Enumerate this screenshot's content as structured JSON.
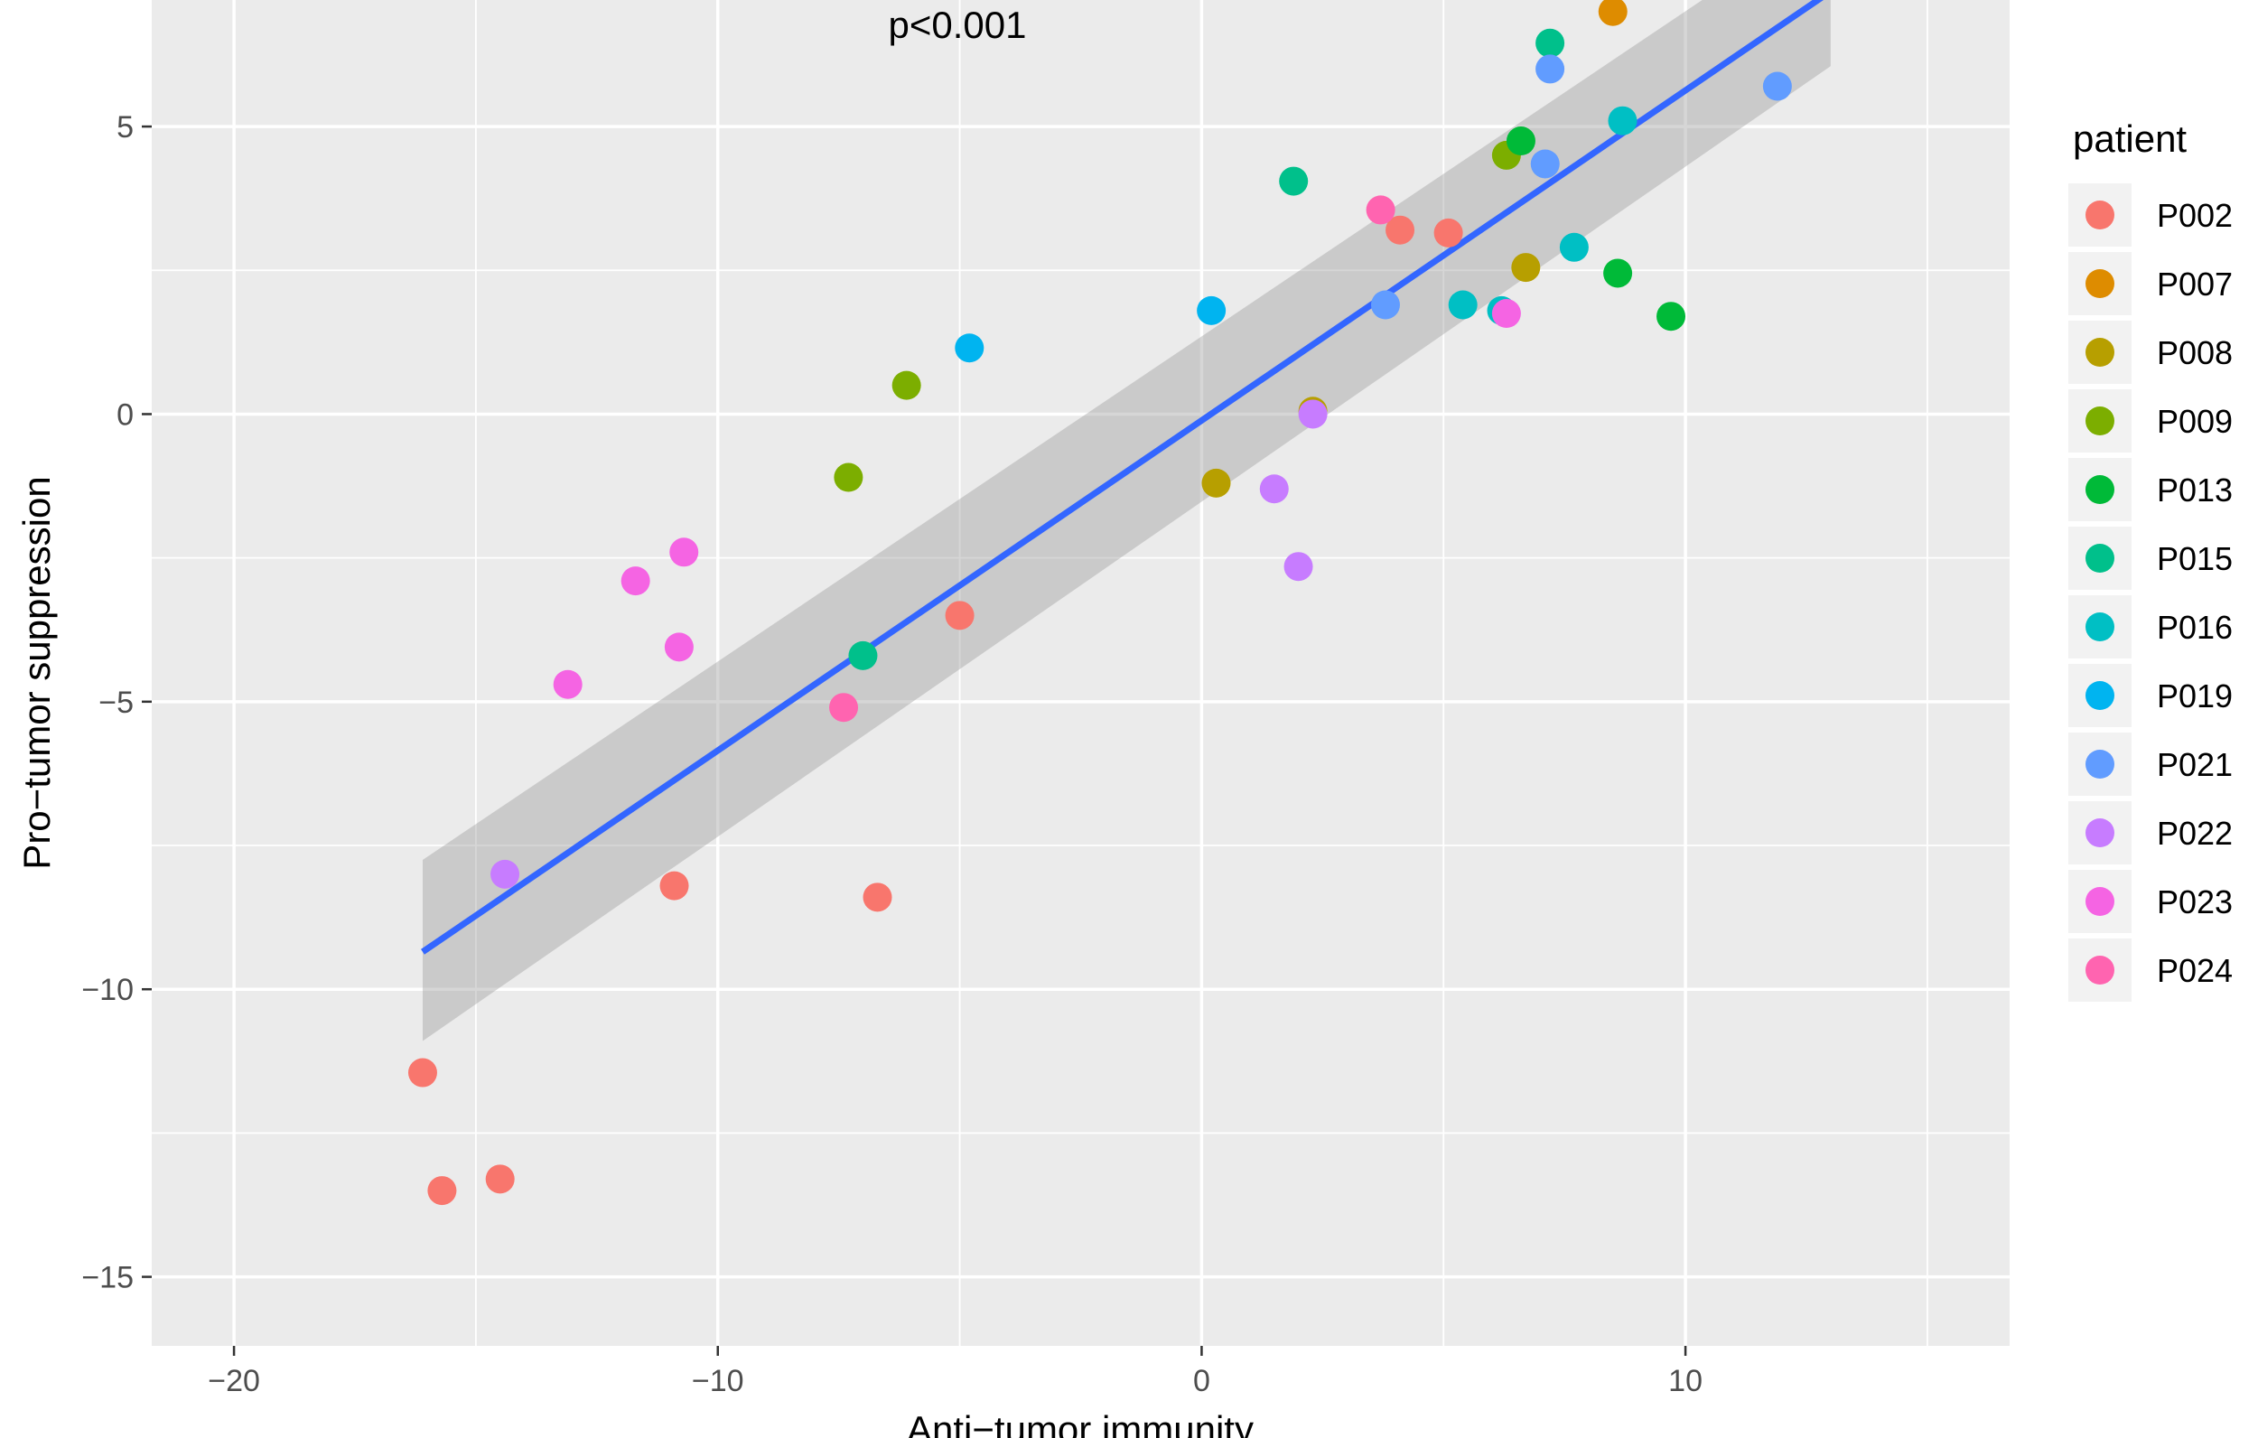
{
  "chart_data": {
    "type": "scatter",
    "title": "",
    "annotation": "p<0.001",
    "xlabel": "Anti−tumor immunity",
    "ylabel": "Pro−tumor suppression",
    "xlim": [
      -21.7,
      16.7
    ],
    "ylim": [
      -16.2,
      7.2
    ],
    "x_ticks": [
      -20,
      -10,
      0,
      10
    ],
    "x_tick_labels": [
      "−20",
      "−10",
      "0",
      "10"
    ],
    "y_ticks": [
      -15,
      -10,
      -5,
      0,
      5
    ],
    "y_tick_labels": [
      "−15",
      "−10",
      "−5",
      "0",
      "5"
    ],
    "grid": true,
    "legend": {
      "title": "patient",
      "placement": "right"
    },
    "regression": {
      "x": [
        -16.1,
        13.0
      ],
      "y": [
        -9.35,
        7.35
      ],
      "ci_lower": [
        -10.9,
        6.05
      ],
      "ci_upper": [
        -7.75,
        8.7
      ],
      "color": "#3366FF"
    },
    "series": [
      {
        "name": "P002",
        "color": "#F8766D",
        "points": [
          [
            -16.1,
            -11.45
          ],
          [
            -15.7,
            -13.5
          ],
          [
            -14.5,
            -13.3
          ],
          [
            -10.9,
            -8.2
          ],
          [
            -6.7,
            -8.4
          ],
          [
            -5.0,
            -3.5
          ],
          [
            4.1,
            3.2
          ],
          [
            5.1,
            3.15
          ]
        ]
      },
      {
        "name": "P007",
        "color": "#DE8C00",
        "points": [
          [
            8.5,
            7.0
          ]
        ]
      },
      {
        "name": "P008",
        "color": "#B79F00",
        "points": [
          [
            0.3,
            -1.2
          ],
          [
            2.3,
            0.05
          ],
          [
            6.7,
            2.55
          ]
        ]
      },
      {
        "name": "P009",
        "color": "#7CAE00",
        "points": [
          [
            -7.3,
            -1.1
          ],
          [
            -6.1,
            0.5
          ],
          [
            6.3,
            4.5
          ]
        ]
      },
      {
        "name": "P013",
        "color": "#00BA38",
        "points": [
          [
            6.6,
            4.75
          ],
          [
            8.6,
            2.45
          ],
          [
            9.7,
            1.7
          ]
        ]
      },
      {
        "name": "P015",
        "color": "#00C08B",
        "points": [
          [
            -7.0,
            -4.2
          ],
          [
            1.9,
            4.05
          ],
          [
            7.2,
            6.45
          ]
        ]
      },
      {
        "name": "P016",
        "color": "#00BFC4",
        "points": [
          [
            5.4,
            1.9
          ],
          [
            6.2,
            1.8
          ],
          [
            7.7,
            2.9
          ],
          [
            8.7,
            5.1
          ]
        ]
      },
      {
        "name": "P019",
        "color": "#00B4F0",
        "points": [
          [
            -4.8,
            1.15
          ],
          [
            0.2,
            1.8
          ]
        ]
      },
      {
        "name": "P021",
        "color": "#619CFF",
        "points": [
          [
            3.8,
            1.9
          ],
          [
            7.1,
            4.35
          ],
          [
            7.2,
            6.0
          ],
          [
            11.9,
            5.7
          ]
        ]
      },
      {
        "name": "P022",
        "color": "#C77CFF",
        "points": [
          [
            -14.4,
            -8.0
          ],
          [
            1.5,
            -1.3
          ],
          [
            2.0,
            -2.65
          ],
          [
            2.3,
            0.0
          ]
        ]
      },
      {
        "name": "P023",
        "color": "#F564E3",
        "points": [
          [
            -13.1,
            -4.7
          ],
          [
            -11.7,
            -2.9
          ],
          [
            -10.8,
            -4.05
          ],
          [
            -10.7,
            -2.4
          ],
          [
            6.3,
            1.75
          ]
        ]
      },
      {
        "name": "P024",
        "color": "#FF64B0",
        "points": [
          [
            -7.4,
            -5.1
          ],
          [
            3.7,
            3.55
          ]
        ]
      }
    ]
  }
}
